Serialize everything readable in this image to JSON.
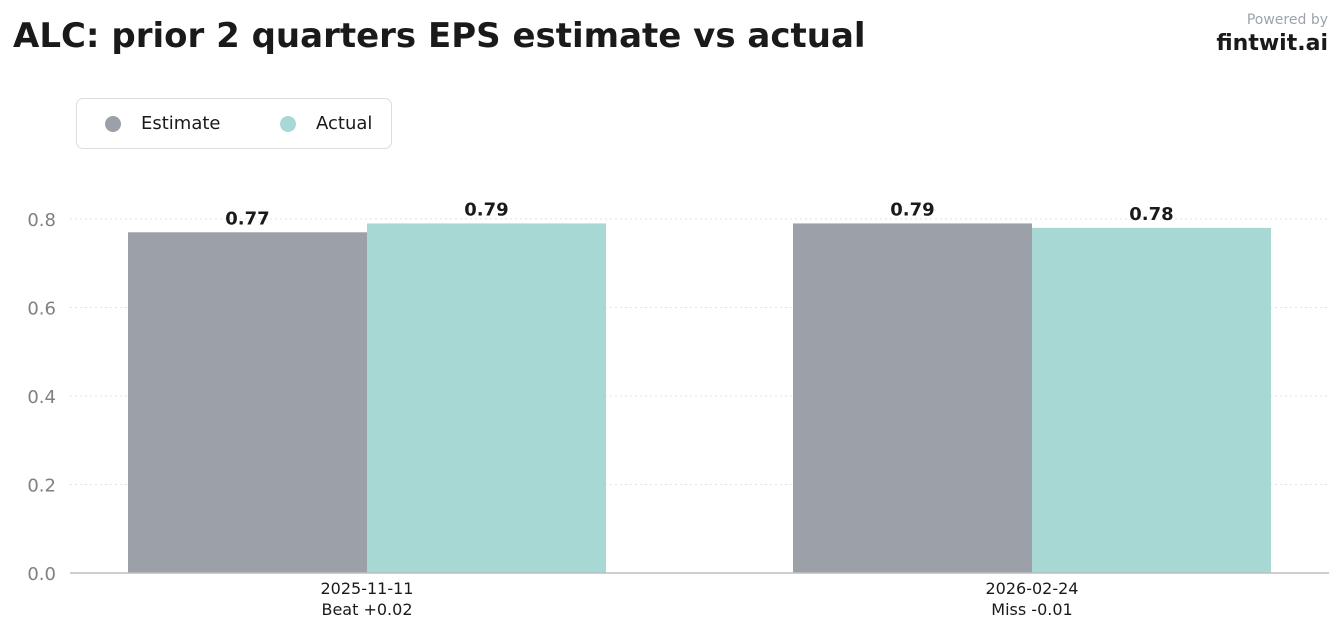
{
  "header": {
    "title": "ALC: prior 2 quarters EPS estimate vs actual"
  },
  "brand": {
    "powered_by": "Powered by",
    "name": "fintwit.ai"
  },
  "chart_data": {
    "type": "bar",
    "categories": [
      "2025-11-11",
      "2026-02-24"
    ],
    "category_notes": [
      "Beat +0.02",
      "Miss -0.01"
    ],
    "series": [
      {
        "name": "Estimate",
        "values": [
          0.77,
          0.79
        ],
        "color": "#9ca0a8"
      },
      {
        "name": "Actual",
        "values": [
          0.79,
          0.78
        ],
        "color": "#a8d8d4"
      }
    ],
    "value_labels": [
      [
        "0.77",
        "0.79"
      ],
      [
        "0.79",
        "0.78"
      ]
    ],
    "y_ticks": [
      "0.0",
      "0.2",
      "0.4",
      "0.6",
      "0.8"
    ],
    "ylim": [
      0,
      0.8
    ],
    "grid": "horizontal-dotted",
    "legend_position": "top-left"
  }
}
